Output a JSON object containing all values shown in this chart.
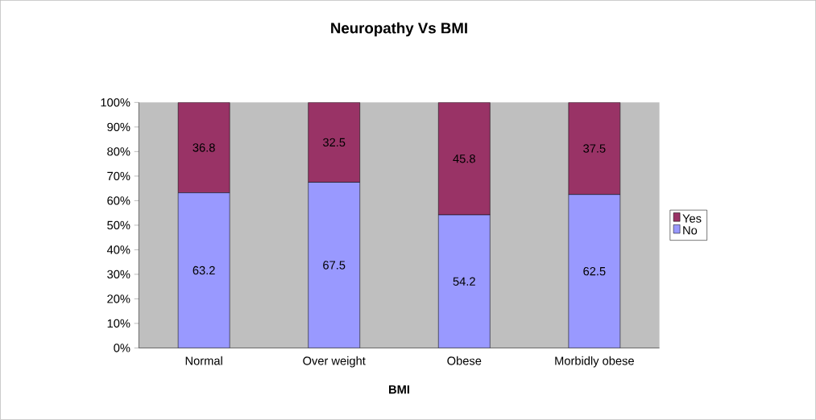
{
  "chart_data": {
    "type": "bar",
    "title": "Neuropathy Vs BMI",
    "xlabel": "BMI",
    "categories": [
      "Normal",
      "Over weight",
      "Obese",
      "Morbidly obese"
    ],
    "stacked": true,
    "series": [
      {
        "name": "No",
        "color": "#9999ff",
        "values": [
          63.2,
          67.5,
          54.2,
          62.5
        ]
      },
      {
        "name": "Yes",
        "color": "#993366",
        "values": [
          36.8,
          32.5,
          45.8,
          37.5
        ]
      }
    ],
    "ylim": [
      0,
      100
    ],
    "yticks": [
      {
        "value": 0,
        "label": "0%"
      },
      {
        "value": 10,
        "label": "10%"
      },
      {
        "value": 20,
        "label": "20%"
      },
      {
        "value": 30,
        "label": "30%"
      },
      {
        "value": 40,
        "label": "40%"
      },
      {
        "value": 50,
        "label": "50%"
      },
      {
        "value": 60,
        "label": "60%"
      },
      {
        "value": 70,
        "label": "70%"
      },
      {
        "value": 80,
        "label": "80%"
      },
      {
        "value": 90,
        "label": "90%"
      },
      {
        "value": 100,
        "label": "100%"
      }
    ],
    "data_labels": true,
    "legend": "right"
  }
}
